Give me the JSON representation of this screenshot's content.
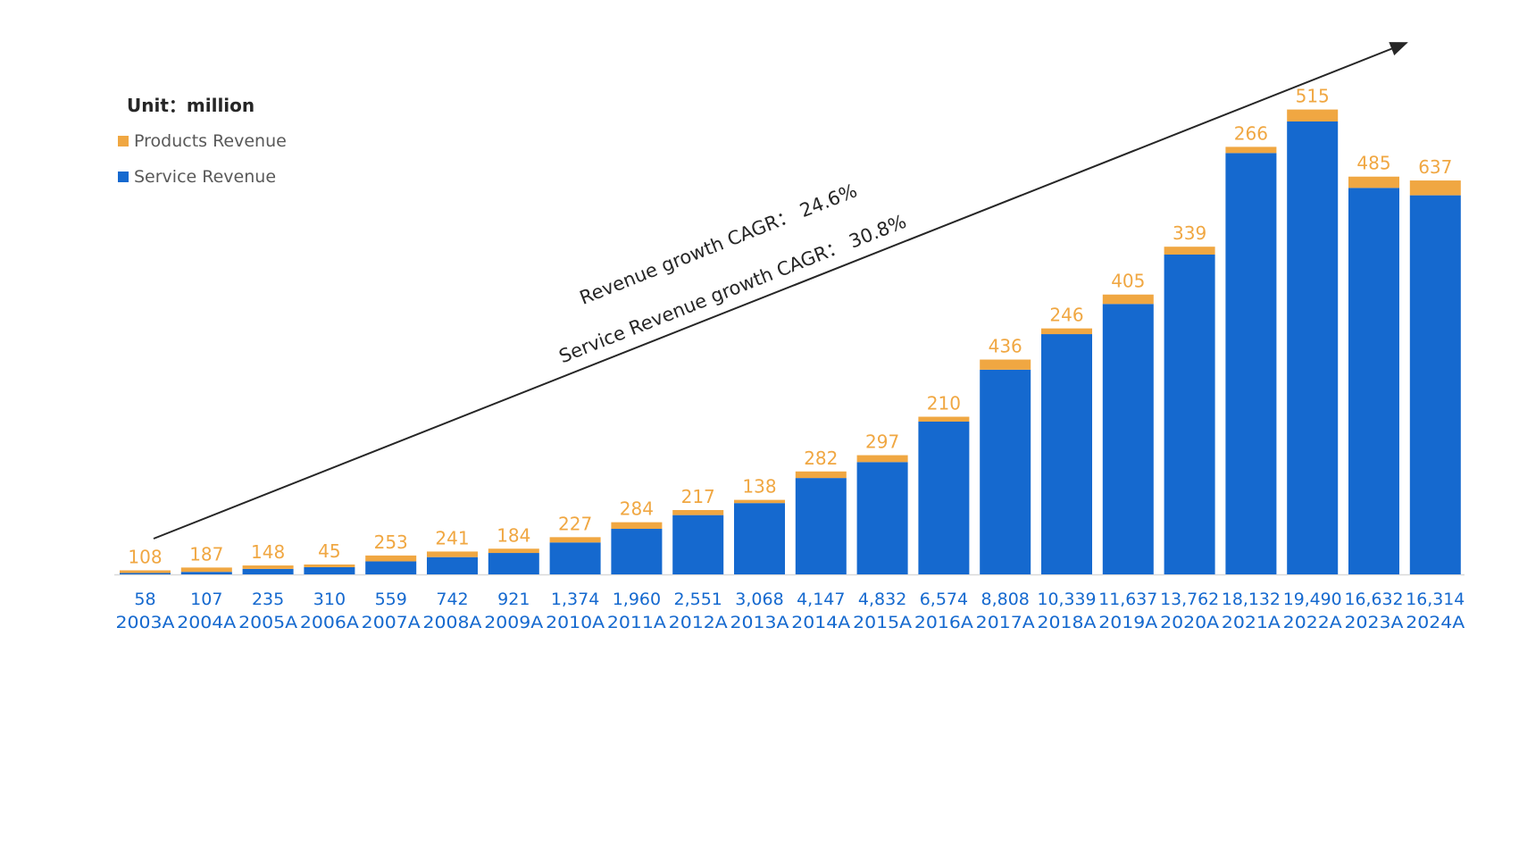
{
  "chart_data": {
    "type": "bar",
    "stacked": true,
    "unit_label": "Unit：million",
    "categories": [
      "2003A",
      "2004A",
      "2005A",
      "2006A",
      "2007A",
      "2008A",
      "2009A",
      "2010A",
      "2011A",
      "2012A",
      "2013A",
      "2014A",
      "2015A",
      "2016A",
      "2017A",
      "2018A",
      "2019A",
      "2020A",
      "2021A",
      "2022A",
      "2023A",
      "2024A"
    ],
    "series": [
      {
        "name": "Service Revenue",
        "color": "#1569CF",
        "values": [
          58,
          107,
          235,
          310,
          559,
          742,
          921,
          1374,
          1960,
          2551,
          3068,
          4147,
          4832,
          6574,
          8808,
          10339,
          11637,
          13762,
          18132,
          19490,
          16632,
          16314
        ],
        "labels": [
          "58",
          "107",
          "235",
          "310",
          "559",
          "742",
          "921",
          "1,374",
          "1,960",
          "2,551",
          "3,068",
          "4,147",
          "4,832",
          "6,574",
          "8,808",
          "10,339",
          "11,637",
          "13,762",
          "18,132",
          "19,490",
          "16,632",
          "16,314"
        ]
      },
      {
        "name": "Products Revenue",
        "color": "#F0A742",
        "values": [
          108,
          187,
          148,
          45,
          253,
          241,
          184,
          227,
          284,
          217,
          138,
          282,
          297,
          210,
          436,
          246,
          405,
          339,
          266,
          515,
          485,
          637
        ],
        "labels": [
          "108",
          "187",
          "148",
          "45",
          "253",
          "241",
          "184",
          "227",
          "284",
          "217",
          "138",
          "282",
          "297",
          "210",
          "436",
          "246",
          "405",
          "339",
          "266",
          "515",
          "485",
          "637"
        ]
      }
    ],
    "annotations": [
      "Revenue growth CAGR：  24.6%",
      "Service Revenue growth CAGR：  30.8%"
    ],
    "legend_position": "top-left",
    "grid": false,
    "ylim": [
      0,
      21000
    ]
  }
}
